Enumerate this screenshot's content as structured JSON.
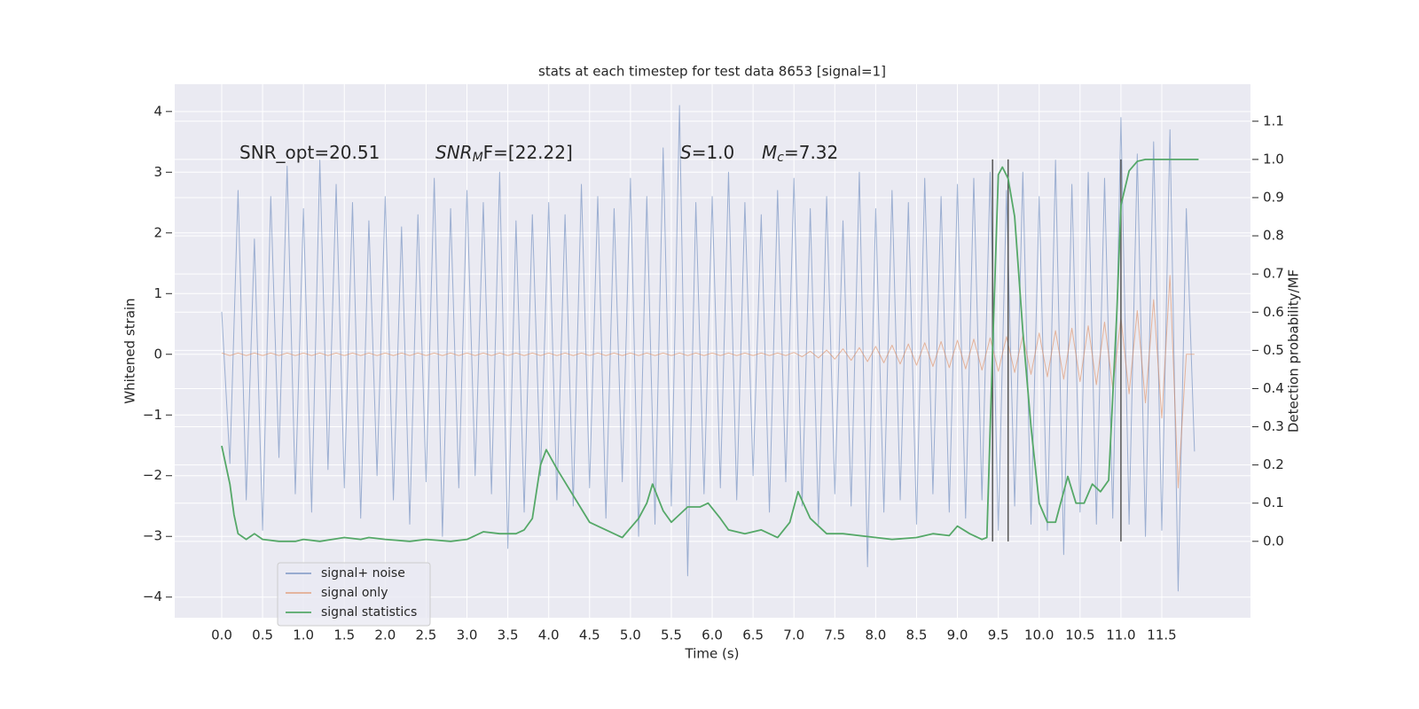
{
  "chart_data": {
    "type": "line",
    "title": "stats at each timestep for test data 8653 [signal=1]",
    "x_label": "Time (s)",
    "y_label": "Whitened strain",
    "y2_label": "Detection probability/MF",
    "annotations": [
      {
        "main": "SNR_opt=20.51"
      },
      {
        "main": "SNR",
        "sub": "M",
        "rest": "F=[22.22]"
      },
      {
        "main": "S",
        "rest": "=1.0"
      },
      {
        "main": "M",
        "sub": "c",
        "rest": "=7.32"
      }
    ],
    "xlim": [
      -0.575,
      12.585
    ],
    "ylim": [
      -4.34,
      4.45
    ],
    "y2lim": [
      -0.2,
      1.197
    ],
    "grid": true,
    "legend": "lower left",
    "xticks": [
      {
        "value": 0,
        "label": "0.0"
      },
      0.5,
      {
        "value": 1,
        "label": "1.0"
      },
      1.5,
      {
        "value": 2,
        "label": "2.0"
      },
      2.5,
      {
        "value": 3,
        "label": "3.0"
      },
      3.5,
      {
        "value": 4,
        "label": "4.0"
      },
      4.5,
      {
        "value": 5,
        "label": "5.0"
      },
      5.5,
      {
        "value": 6,
        "label": "6.0"
      },
      6.5,
      {
        "value": 7,
        "label": "7.0"
      },
      7.5,
      {
        "value": 8,
        "label": "8.0"
      },
      8.5,
      {
        "value": 9,
        "label": "9.0"
      },
      9.5,
      {
        "value": 10,
        "label": "10.0"
      },
      10.5,
      {
        "value": 11,
        "label": "11.0"
      },
      11.5
    ],
    "yticks": [
      {
        "value": -4,
        "label": "−4"
      },
      {
        "value": -3,
        "label": "−3"
      },
      {
        "value": -2,
        "label": "−2"
      },
      {
        "value": -1,
        "label": "−1"
      },
      0,
      1,
      2,
      3,
      4
    ],
    "y2ticks": [
      {
        "value": 0,
        "label": "0.0"
      },
      0.1,
      0.2,
      0.3,
      0.4,
      0.5,
      0.6,
      0.7,
      0.8,
      0.9,
      {
        "value": 1,
        "label": "1.0"
      },
      1.1
    ],
    "vlines": [
      {
        "x": 9.43,
        "ymin": 0,
        "ymax": 1.0
      },
      {
        "x": 9.62,
        "ymin": 0,
        "ymax": 1.0
      },
      {
        "x": 11.0,
        "ymin": 0,
        "ymax": 1.0
      }
    ],
    "vline_color": "#555555",
    "series": [
      {
        "name": "signal+ noise",
        "color": "#4c72b0",
        "x": [
          0,
          0.1,
          0.2,
          0.3,
          0.4,
          0.5,
          0.6,
          0.7,
          0.8,
          0.9,
          1,
          1.1,
          1.2,
          1.3,
          1.4,
          1.5,
          1.6,
          1.7,
          1.8,
          1.9,
          2,
          2.1,
          2.2,
          2.3,
          2.4,
          2.5,
          2.6,
          2.7,
          2.8,
          2.9,
          3,
          3.1,
          3.2,
          3.3,
          3.4,
          3.5,
          3.6,
          3.7,
          3.8,
          3.9,
          4,
          4.1,
          4.2,
          4.3,
          4.4,
          4.5,
          4.6,
          4.7,
          4.8,
          4.9,
          5,
          5.1,
          5.2,
          5.3,
          5.4,
          5.5,
          5.6,
          5.7,
          5.8,
          5.9,
          6,
          6.1,
          6.2,
          6.3,
          6.4,
          6.5,
          6.6,
          6.7,
          6.8,
          6.9,
          7,
          7.1,
          7.2,
          7.3,
          7.4,
          7.5,
          7.6,
          7.7,
          7.8,
          7.9,
          8,
          8.1,
          8.2,
          8.3,
          8.4,
          8.5,
          8.6,
          8.7,
          8.8,
          8.9,
          9,
          9.1,
          9.2,
          9.3,
          9.4,
          9.5,
          9.6,
          9.7,
          9.8,
          9.9,
          10,
          10.1,
          10.2,
          10.3,
          10.4,
          10.5,
          10.6,
          10.7,
          10.8,
          10.9,
          11,
          11.1,
          11.2,
          11.3,
          11.4,
          11.5,
          11.6,
          11.7,
          11.8,
          11.9
        ],
        "values": [
          0.7,
          -1.8,
          2.7,
          -2.4,
          1.9,
          -2.9,
          2.6,
          -1.7,
          3.1,
          -2.3,
          2.4,
          -2.6,
          3.2,
          -1.9,
          2.8,
          -2.2,
          2.5,
          -2.7,
          2.2,
          -2.0,
          2.6,
          -2.4,
          2.1,
          -2.8,
          2.3,
          -2.1,
          2.9,
          -3.0,
          2.4,
          -2.2,
          2.7,
          -2.0,
          2.5,
          -2.3,
          3.0,
          -3.2,
          2.2,
          -2.6,
          2.3,
          -2.0,
          2.5,
          -2.4,
          2.3,
          -2.5,
          2.8,
          -2.2,
          2.6,
          -2.7,
          2.4,
          -2.1,
          2.9,
          -3.0,
          2.6,
          -2.8,
          3.4,
          -2.5,
          4.1,
          -3.65,
          2.5,
          -2.3,
          2.6,
          -2.2,
          3.0,
          -2.4,
          2.5,
          -2.0,
          2.3,
          -2.6,
          2.7,
          -2.1,
          2.9,
          -2.5,
          2.4,
          -2.8,
          2.6,
          -2.3,
          2.2,
          -2.5,
          3.0,
          -3.5,
          2.4,
          -2.6,
          2.7,
          -2.4,
          2.5,
          -2.8,
          2.9,
          -2.3,
          2.6,
          -2.6,
          2.8,
          -2.7,
          2.9,
          -2.4,
          3.0,
          -2.9,
          2.7,
          -2.5,
          3.0,
          -2.8,
          2.6,
          -2.9,
          3.2,
          -3.3,
          2.8,
          -2.6,
          3.0,
          -2.8,
          2.9,
          -2.7,
          3.9,
          -2.8,
          3.3,
          -3.0,
          3.5,
          -2.9,
          3.7,
          -3.9,
          2.4,
          -1.6
        ]
      },
      {
        "name": "signal only",
        "color": "#dd8452",
        "x": [
          0,
          0.1,
          0.2,
          0.3,
          0.4,
          0.5,
          0.6,
          0.7,
          0.8,
          0.9,
          1,
          1.1,
          1.2,
          1.3,
          1.4,
          1.5,
          1.6,
          1.7,
          1.8,
          1.9,
          2,
          2.1,
          2.2,
          2.3,
          2.4,
          2.5,
          2.6,
          2.7,
          2.8,
          2.9,
          3,
          3.1,
          3.2,
          3.3,
          3.4,
          3.5,
          3.6,
          3.7,
          3.8,
          3.9,
          4,
          4.1,
          4.2,
          4.3,
          4.4,
          4.5,
          4.6,
          4.7,
          4.8,
          4.9,
          5,
          5.1,
          5.2,
          5.3,
          5.4,
          5.5,
          5.6,
          5.7,
          5.8,
          5.9,
          6,
          6.1,
          6.2,
          6.3,
          6.4,
          6.5,
          6.6,
          6.7,
          6.8,
          6.9,
          7,
          7.1,
          7.2,
          7.3,
          7.4,
          7.5,
          7.6,
          7.7,
          7.8,
          7.9,
          8,
          8.1,
          8.2,
          8.3,
          8.4,
          8.5,
          8.6,
          8.7,
          8.8,
          8.9,
          9,
          9.1,
          9.2,
          9.3,
          9.4,
          9.5,
          9.6,
          9.7,
          9.8,
          9.9,
          10,
          10.1,
          10.2,
          10.3,
          10.4,
          10.5,
          10.6,
          10.7,
          10.8,
          10.9,
          11,
          11.1,
          11.2,
          11.3,
          11.4,
          11.5,
          11.6,
          11.7,
          11.8,
          11.9
        ],
        "values": [
          0.02,
          -0.02,
          0.02,
          -0.02,
          0.02,
          -0.02,
          0.02,
          -0.02,
          0.02,
          -0.02,
          0.02,
          -0.02,
          0.02,
          -0.02,
          0.02,
          -0.02,
          0.02,
          -0.02,
          0.02,
          -0.02,
          0.02,
          -0.02,
          0.02,
          -0.02,
          0.02,
          -0.02,
          0.02,
          -0.02,
          0.02,
          -0.02,
          0.02,
          -0.02,
          0.02,
          -0.02,
          0.02,
          -0.02,
          0.02,
          -0.02,
          0.02,
          -0.02,
          0.02,
          -0.02,
          0.02,
          -0.02,
          0.02,
          -0.02,
          0.02,
          -0.02,
          0.02,
          -0.02,
          0.02,
          -0.02,
          0.02,
          -0.02,
          0.02,
          -0.02,
          0.02,
          -0.02,
          0.02,
          -0.02,
          0.02,
          -0.02,
          0.02,
          -0.02,
          0.02,
          -0.02,
          0.02,
          -0.02,
          0.02,
          -0.02,
          0.03,
          -0.04,
          0.05,
          -0.06,
          0.07,
          -0.08,
          0.09,
          -0.1,
          0.11,
          -0.12,
          0.13,
          -0.14,
          0.15,
          -0.16,
          0.17,
          -0.18,
          0.19,
          -0.2,
          0.21,
          -0.22,
          0.23,
          -0.24,
          0.25,
          -0.26,
          0.27,
          -0.28,
          0.29,
          -0.3,
          0.31,
          -0.33,
          0.35,
          -0.37,
          0.39,
          -0.41,
          0.43,
          -0.45,
          0.47,
          -0.5,
          0.53,
          -0.56,
          0.6,
          -0.65,
          0.72,
          -0.8,
          0.9,
          -1.05,
          1.3,
          -2.2,
          0,
          0
        ]
      },
      {
        "name": "signal statistics",
        "color": "#55a868",
        "axis": "y2",
        "x": [
          0,
          0.1,
          0.15,
          0.2,
          0.3,
          0.4,
          0.5,
          0.7,
          0.9,
          1,
          1.2,
          1.5,
          1.7,
          1.8,
          2,
          2.3,
          2.5,
          2.8,
          3,
          3.2,
          3.4,
          3.6,
          3.7,
          3.8,
          3.9,
          3.97,
          4.1,
          4.3,
          4.5,
          4.7,
          4.9,
          5.1,
          5.2,
          5.27,
          5.4,
          5.5,
          5.7,
          5.85,
          5.95,
          6.1,
          6.2,
          6.4,
          6.6,
          6.8,
          6.95,
          7.05,
          7.2,
          7.4,
          7.6,
          8,
          8.2,
          8.5,
          8.7,
          8.9,
          9,
          9.15,
          9.3,
          9.36,
          9.43,
          9.5,
          9.55,
          9.62,
          9.7,
          9.8,
          9.9,
          10,
          10.1,
          10.2,
          10.35,
          10.45,
          10.55,
          10.65,
          10.75,
          10.85,
          10.95,
          11,
          11.1,
          11.2,
          11.3,
          11.95
        ],
        "values": [
          0.25,
          0.15,
          0.07,
          0.02,
          0.005,
          0.02,
          0.005,
          0,
          0,
          0.005,
          0,
          0.01,
          0.005,
          0.01,
          0.005,
          0,
          0.005,
          0,
          0.005,
          0.025,
          0.02,
          0.02,
          0.03,
          0.06,
          0.2,
          0.24,
          0.19,
          0.12,
          0.05,
          0.03,
          0.01,
          0.06,
          0.1,
          0.15,
          0.08,
          0.05,
          0.09,
          0.09,
          0.1,
          0.06,
          0.03,
          0.02,
          0.03,
          0.01,
          0.05,
          0.13,
          0.06,
          0.02,
          0.02,
          0.01,
          0.005,
          0.01,
          0.02,
          0.015,
          0.04,
          0.02,
          0.005,
          0.01,
          0.5,
          0.96,
          0.98,
          0.95,
          0.85,
          0.55,
          0.3,
          0.1,
          0.05,
          0.05,
          0.17,
          0.1,
          0.1,
          0.15,
          0.13,
          0.16,
          0.6,
          0.88,
          0.97,
          0.995,
          1.0,
          1.0
        ]
      }
    ]
  }
}
